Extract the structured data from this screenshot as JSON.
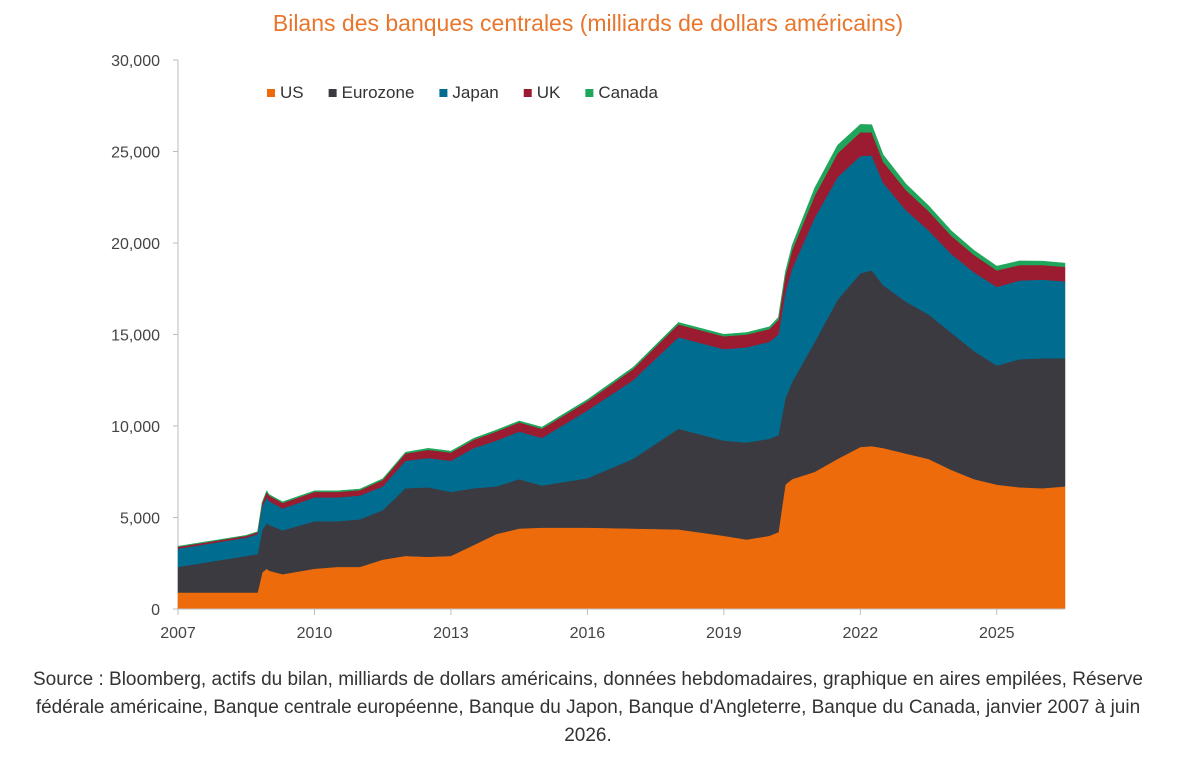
{
  "chart_data": {
    "type": "area",
    "stacked": true,
    "title": "Bilans des banques centrales (milliards de dollars américains)",
    "x_ticks": [
      "2007",
      "2010",
      "2013",
      "2016",
      "2019",
      "2022",
      "2025"
    ],
    "y_ticks": [
      "0",
      "5,000",
      "10,000",
      "15,000",
      "20,000",
      "25,000",
      "30,000"
    ],
    "ylim": [
      0,
      30000
    ],
    "xlim": [
      2007.0,
      2026.5
    ],
    "legend_position": "top-left",
    "x": [
      2007.0,
      2008.5,
      2008.75,
      2008.85,
      2008.95,
      2009.0,
      2009.3,
      2010.0,
      2010.5,
      2011.0,
      2011.5,
      2012.0,
      2012.5,
      2013.0,
      2013.5,
      2014.0,
      2014.5,
      2015.0,
      2016.0,
      2017.0,
      2018.0,
      2019.0,
      2019.5,
      2020.0,
      2020.2,
      2020.35,
      2020.5,
      2021.0,
      2021.5,
      2022.0,
      2022.25,
      2022.5,
      2023.0,
      2023.5,
      2024.0,
      2024.5,
      2025.0,
      2025.5,
      2026.0,
      2026.5
    ],
    "series": [
      {
        "name": "US",
        "color": "#EE6B0B",
        "values": [
          900,
          900,
          900,
          2000,
          2200,
          2100,
          1900,
          2200,
          2300,
          2300,
          2700,
          2900,
          2850,
          2900,
          3500,
          4100,
          4400,
          4450,
          4450,
          4400,
          4350,
          4000,
          3800,
          4000,
          4200,
          6800,
          7100,
          7500,
          8200,
          8850,
          8900,
          8800,
          8500,
          8200,
          7600,
          7100,
          6800,
          6650,
          6600,
          6700
        ]
      },
      {
        "name": "Eurozone",
        "color": "#3A3A40",
        "values": [
          1400,
          2000,
          2100,
          2300,
          2500,
          2500,
          2400,
          2600,
          2500,
          2600,
          2700,
          3700,
          3800,
          3500,
          3100,
          2600,
          2700,
          2300,
          2700,
          3800,
          5500,
          5200,
          5300,
          5300,
          5300,
          4700,
          5300,
          7100,
          8700,
          9500,
          9600,
          8900,
          8300,
          7900,
          7500,
          7000,
          6500,
          7000,
          7100,
          7000
        ]
      },
      {
        "name": "Japan",
        "color": "#006C8F",
        "values": [
          1000,
          1000,
          1100,
          1300,
          1400,
          1300,
          1200,
          1300,
          1300,
          1300,
          1300,
          1500,
          1600,
          1700,
          2200,
          2500,
          2600,
          2600,
          3700,
          4300,
          5000,
          5000,
          5200,
          5300,
          5500,
          5800,
          6200,
          6800,
          6700,
          6400,
          6300,
          5600,
          5000,
          4600,
          4300,
          4300,
          4300,
          4300,
          4300,
          4200
        ]
      },
      {
        "name": "UK",
        "color": "#9B1B30",
        "values": [
          100,
          100,
          100,
          200,
          300,
          300,
          300,
          300,
          300,
          300,
          350,
          400,
          450,
          450,
          450,
          500,
          500,
          500,
          500,
          600,
          700,
          700,
          700,
          700,
          800,
          900,
          1000,
          1200,
          1300,
          1300,
          1250,
          1150,
          1100,
          1050,
          1000,
          950,
          900,
          850,
          800,
          800
        ]
      },
      {
        "name": "Canada",
        "color": "#1FA65A",
        "values": [
          30,
          30,
          30,
          40,
          60,
          60,
          60,
          60,
          60,
          60,
          70,
          70,
          80,
          80,
          80,
          80,
          80,
          90,
          100,
          100,
          110,
          110,
          110,
          120,
          140,
          200,
          280,
          420,
          450,
          430,
          420,
          380,
          340,
          300,
          270,
          250,
          240,
          220,
          210,
          200
        ]
      }
    ],
    "footnote": "Source : Bloomberg, actifs du bilan, milliards de dollars américains, données hebdomadaires, graphique en aires empilées, Réserve fédérale américaine, Banque centrale européenne, Banque du Japon, Banque d'Angleterre, Banque du Canada, janvier 2007 à juin 2026."
  }
}
